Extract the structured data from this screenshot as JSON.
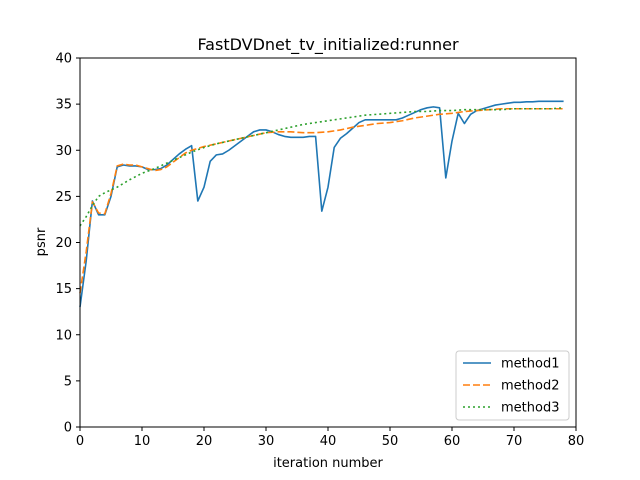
{
  "chart_data": {
    "type": "line",
    "title": "FastDVDnet_tv_initialized:runner",
    "xlabel": "iteration number",
    "ylabel": "psnr",
    "xlim": [
      0,
      80
    ],
    "ylim": [
      0,
      40
    ],
    "xticks": [
      0,
      10,
      20,
      30,
      40,
      50,
      60,
      70,
      80
    ],
    "yticks": [
      0,
      5,
      10,
      15,
      20,
      25,
      30,
      35,
      40
    ],
    "grid": false,
    "legend_position": "bottom-right",
    "series": [
      {
        "name": "method1",
        "color": "#1f77b4",
        "style": "solid",
        "x": [
          0,
          1,
          2,
          3,
          4,
          5,
          6,
          7,
          8,
          9,
          10,
          11,
          12,
          13,
          14,
          15,
          16,
          17,
          18,
          19,
          20,
          21,
          22,
          23,
          24,
          25,
          26,
          27,
          28,
          29,
          30,
          31,
          32,
          33,
          34,
          35,
          36,
          37,
          38,
          39,
          40,
          41,
          42,
          43,
          44,
          45,
          46,
          47,
          48,
          49,
          50,
          51,
          52,
          53,
          54,
          55,
          56,
          57,
          58,
          59,
          60,
          61,
          62,
          63,
          64,
          65,
          66,
          67,
          68,
          69,
          70,
          71,
          72,
          73,
          74,
          75,
          76,
          77,
          78
        ],
        "y": [
          13.0,
          18.0,
          24.5,
          23.0,
          23.0,
          25.0,
          28.2,
          28.4,
          28.3,
          28.3,
          28.2,
          27.9,
          27.9,
          28.0,
          28.4,
          29.0,
          29.6,
          30.1,
          30.5,
          24.5,
          26.0,
          28.8,
          29.5,
          29.6,
          30.0,
          30.5,
          31.0,
          31.5,
          32.0,
          32.2,
          32.2,
          32.0,
          31.7,
          31.5,
          31.4,
          31.4,
          31.4,
          31.5,
          31.5,
          23.4,
          26.0,
          30.3,
          31.3,
          31.8,
          32.4,
          33.0,
          33.3,
          33.3,
          33.3,
          33.3,
          33.3,
          33.3,
          33.5,
          33.8,
          34.1,
          34.4,
          34.6,
          34.7,
          34.6,
          27.0,
          31.0,
          34.0,
          32.9,
          33.9,
          34.3,
          34.5,
          34.7,
          34.9,
          35.0,
          35.1,
          35.2,
          35.2,
          35.25,
          35.25,
          35.3,
          35.3,
          35.3,
          35.3,
          35.3
        ]
      },
      {
        "name": "method2",
        "color": "#ff7f0e",
        "style": "dashed",
        "x": [
          0,
          1,
          2,
          3,
          4,
          5,
          6,
          7,
          8,
          9,
          10,
          11,
          12,
          13,
          14,
          15,
          16,
          17,
          18,
          19,
          20,
          22,
          24,
          26,
          28,
          30,
          32,
          34,
          36,
          38,
          40,
          42,
          44,
          46,
          48,
          50,
          52,
          54,
          56,
          58,
          60,
          62,
          64,
          66,
          68,
          70,
          72,
          74,
          76,
          78
        ],
        "y": [
          14.5,
          19.0,
          24.4,
          23.2,
          23.1,
          25.3,
          28.3,
          28.5,
          28.4,
          28.4,
          28.2,
          28.0,
          27.8,
          27.9,
          28.2,
          28.7,
          29.2,
          29.7,
          30.0,
          30.2,
          30.4,
          30.7,
          31.0,
          31.3,
          31.6,
          31.9,
          32.0,
          32.0,
          31.9,
          31.9,
          32.0,
          32.2,
          32.5,
          32.7,
          32.9,
          33.0,
          33.2,
          33.5,
          33.7,
          33.9,
          34.0,
          34.2,
          34.3,
          34.4,
          34.5,
          34.5,
          34.5,
          34.5,
          34.5,
          34.5
        ]
      },
      {
        "name": "method3",
        "color": "#2ca02c",
        "style": "dotted",
        "x": [
          0,
          1,
          2,
          3,
          4,
          6,
          8,
          10,
          12,
          14,
          16,
          18,
          20,
          22,
          24,
          26,
          28,
          30,
          32,
          34,
          36,
          38,
          40,
          42,
          44,
          46,
          48,
          50,
          52,
          54,
          56,
          58,
          60,
          62,
          64,
          66,
          68,
          70,
          72,
          74,
          76,
          78
        ],
        "y": [
          21.8,
          22.8,
          24.0,
          25.0,
          25.4,
          26.0,
          26.8,
          27.5,
          28.0,
          28.6,
          29.2,
          29.8,
          30.3,
          30.7,
          31.0,
          31.3,
          31.6,
          31.9,
          32.2,
          32.5,
          32.8,
          33.0,
          33.2,
          33.4,
          33.6,
          33.8,
          33.9,
          34.0,
          34.1,
          34.2,
          34.2,
          34.3,
          34.3,
          34.4,
          34.4,
          34.4,
          34.4,
          34.5,
          34.5,
          34.5,
          34.5,
          34.6
        ]
      }
    ]
  }
}
